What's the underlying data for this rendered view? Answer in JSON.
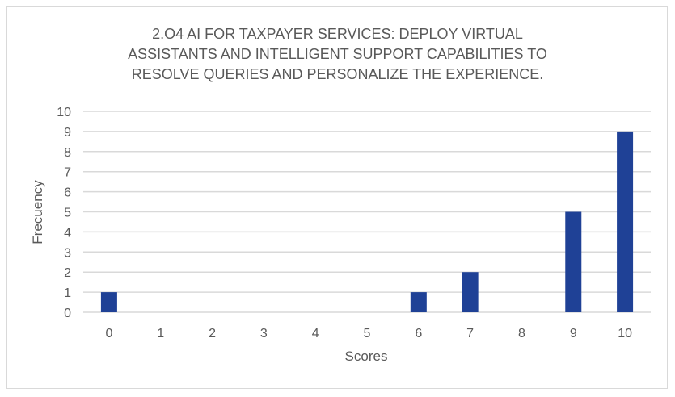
{
  "chart_data": {
    "type": "bar",
    "title_lines": [
      "2.O4 AI FOR TAXPAYER SERVICES: DEPLOY VIRTUAL",
      "ASSISTANTS AND INTELLIGENT SUPPORT CAPABILITIES TO",
      "RESOLVE QUERIES AND PERSONALIZE THE EXPERIENCE."
    ],
    "categories": [
      "0",
      "1",
      "2",
      "3",
      "4",
      "5",
      "6",
      "7",
      "8",
      "9",
      "10"
    ],
    "values": [
      1,
      0,
      0,
      0,
      0,
      0,
      1,
      2,
      0,
      5,
      9
    ],
    "xlabel": "Scores",
    "ylabel": "Frecuency",
    "ylim": [
      0,
      10
    ],
    "yticks": [
      "0",
      "1",
      "2",
      "3",
      "4",
      "5",
      "6",
      "7",
      "8",
      "9",
      "10"
    ],
    "grid": true,
    "bar_color": "#1f4196"
  }
}
